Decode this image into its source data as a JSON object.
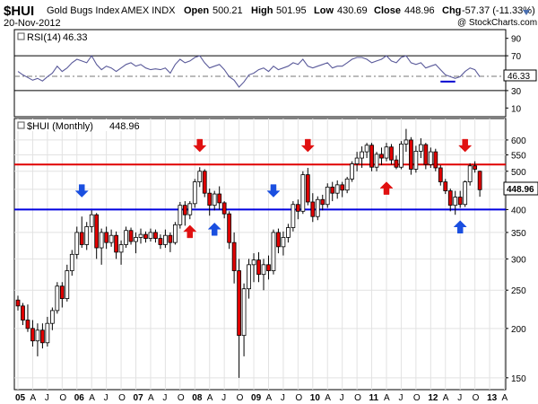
{
  "header": {
    "symbol": "$HUI",
    "name": "Gold Bugs Index",
    "exchange": "AMEX INDX",
    "date": "20-Nov-2012",
    "open_label": "Open",
    "open": "500.21",
    "high_label": "High",
    "high": "501.95",
    "low_label": "Low",
    "low": "430.69",
    "close_label": "Close",
    "close": "448.96",
    "chg_label": "Chg",
    "chg": "-57.37 (-11.33%)",
    "watermark": "@ StockCharts.com"
  },
  "chart_data": [
    {
      "type": "line",
      "title": "RSI(14) 46.33",
      "legend_label": "RSI(14)",
      "legend_value": "46.33",
      "last_value_label": "46.33",
      "ylim": [
        0,
        100
      ],
      "yticks": [
        10,
        30,
        50,
        70,
        90
      ],
      "reference_lines": [
        70,
        30
      ],
      "dashed_midline": 46.33,
      "color": "#5a5a9a",
      "x": [
        "2005-01",
        "2005-02",
        "2005-03",
        "2005-04",
        "2005-05",
        "2005-06",
        "2005-07",
        "2005-08",
        "2005-09",
        "2005-10",
        "2005-11",
        "2005-12",
        "2006-01",
        "2006-02",
        "2006-03",
        "2006-04",
        "2006-05",
        "2006-06",
        "2006-07",
        "2006-08",
        "2006-09",
        "2006-10",
        "2006-11",
        "2006-12",
        "2007-01",
        "2007-02",
        "2007-03",
        "2007-04",
        "2007-05",
        "2007-06",
        "2007-07",
        "2007-08",
        "2007-09",
        "2007-10",
        "2007-11",
        "2007-12",
        "2008-01",
        "2008-02",
        "2008-03",
        "2008-04",
        "2008-05",
        "2008-06",
        "2008-07",
        "2008-08",
        "2008-09",
        "2008-10",
        "2008-11",
        "2008-12",
        "2009-01",
        "2009-02",
        "2009-03",
        "2009-04",
        "2009-05",
        "2009-06",
        "2009-07",
        "2009-08",
        "2009-09",
        "2009-10",
        "2009-11",
        "2009-12",
        "2010-01",
        "2010-02",
        "2010-03",
        "2010-04",
        "2010-05",
        "2010-06",
        "2010-07",
        "2010-08",
        "2010-09",
        "2010-10",
        "2010-11",
        "2010-12",
        "2011-01",
        "2011-02",
        "2011-03",
        "2011-04",
        "2011-05",
        "2011-06",
        "2011-07",
        "2011-08",
        "2011-09",
        "2011-10",
        "2011-11",
        "2011-12",
        "2012-01",
        "2012-02",
        "2012-03",
        "2012-04",
        "2012-05",
        "2012-06",
        "2012-07",
        "2012-08",
        "2012-09",
        "2012-10",
        "2012-11"
      ],
      "values": [
        52,
        48,
        45,
        42,
        44,
        41,
        46,
        50,
        58,
        52,
        56,
        62,
        66,
        64,
        62,
        70,
        60,
        54,
        58,
        56,
        52,
        56,
        60,
        62,
        58,
        60,
        56,
        54,
        55,
        54,
        56,
        50,
        60,
        66,
        62,
        64,
        68,
        70,
        62,
        56,
        58,
        60,
        54,
        46,
        42,
        34,
        40,
        48,
        50,
        54,
        56,
        52,
        58,
        54,
        56,
        58,
        62,
        60,
        66,
        58,
        56,
        58,
        60,
        62,
        56,
        58,
        58,
        62,
        66,
        68,
        68,
        66,
        62,
        64,
        66,
        70,
        64,
        62,
        68,
        70,
        62,
        60,
        62,
        56,
        58,
        60,
        54,
        48,
        46,
        44,
        46,
        52,
        56,
        54,
        46
      ]
    },
    {
      "type": "candlestick",
      "title": "$HUI (Monthly) 448.96",
      "legend_label": "$HUI (Monthly)",
      "legend_value": "448.96",
      "last_value_label": "448.96",
      "yscale": "log",
      "ylim": [
        140,
        680
      ],
      "yticks": [
        150,
        200,
        250,
        300,
        350,
        400,
        450,
        500,
        550,
        600
      ],
      "xlabels": [
        "05",
        "A",
        "J",
        "O",
        "06",
        "A",
        "J",
        "O",
        "07",
        "A",
        "J",
        "O",
        "08",
        "A",
        "J",
        "O",
        "09",
        "A",
        "J",
        "O",
        "10",
        "A",
        "J",
        "O",
        "11",
        "A",
        "J",
        "O",
        "12",
        "A",
        "J",
        "O",
        "13",
        "A"
      ],
      "x_start": "2005-01",
      "horizontal_lines": [
        {
          "value": 520,
          "color": "#e00000"
        },
        {
          "value": 400,
          "color": "#0000e0"
        }
      ],
      "arrows": [
        {
          "month": "2006-02",
          "value": 430,
          "direction": "down",
          "color": "#1a4fe0"
        },
        {
          "month": "2008-02",
          "value": 560,
          "direction": "down",
          "color": "#e01010"
        },
        {
          "month": "2007-12",
          "value": 365,
          "direction": "up",
          "color": "#e01010"
        },
        {
          "month": "2008-05",
          "value": 370,
          "direction": "up",
          "color": "#1a4fe0"
        },
        {
          "month": "2009-05",
          "value": 430,
          "direction": "down",
          "color": "#1a4fe0"
        },
        {
          "month": "2009-12",
          "value": 560,
          "direction": "down",
          "color": "#e01010"
        },
        {
          "month": "2011-04",
          "value": 470,
          "direction": "up",
          "color": "#e01010"
        },
        {
          "month": "2012-08",
          "value": 560,
          "direction": "down",
          "color": "#e01010"
        },
        {
          "month": "2012-07",
          "value": 375,
          "direction": "up",
          "color": "#1a4fe0"
        }
      ],
      "candles": [
        {
          "o": 236,
          "h": 242,
          "l": 222,
          "c": 228
        },
        {
          "o": 228,
          "h": 232,
          "l": 204,
          "c": 210
        },
        {
          "o": 210,
          "h": 230,
          "l": 196,
          "c": 200
        },
        {
          "o": 200,
          "h": 210,
          "l": 180,
          "c": 186
        },
        {
          "o": 186,
          "h": 206,
          "l": 170,
          "c": 198
        },
        {
          "o": 198,
          "h": 206,
          "l": 178,
          "c": 184
        },
        {
          "o": 184,
          "h": 214,
          "l": 180,
          "c": 206
        },
        {
          "o": 206,
          "h": 226,
          "l": 198,
          "c": 222
        },
        {
          "o": 222,
          "h": 262,
          "l": 218,
          "c": 256
        },
        {
          "o": 256,
          "h": 262,
          "l": 226,
          "c": 238
        },
        {
          "o": 238,
          "h": 290,
          "l": 234,
          "c": 280
        },
        {
          "o": 280,
          "h": 316,
          "l": 272,
          "c": 308
        },
        {
          "o": 308,
          "h": 362,
          "l": 300,
          "c": 350
        },
        {
          "o": 350,
          "h": 384,
          "l": 320,
          "c": 326
        },
        {
          "o": 326,
          "h": 372,
          "l": 316,
          "c": 362
        },
        {
          "o": 362,
          "h": 398,
          "l": 350,
          "c": 388
        },
        {
          "o": 388,
          "h": 392,
          "l": 300,
          "c": 320
        },
        {
          "o": 320,
          "h": 358,
          "l": 290,
          "c": 350
        },
        {
          "o": 350,
          "h": 362,
          "l": 318,
          "c": 330
        },
        {
          "o": 330,
          "h": 356,
          "l": 322,
          "c": 344
        },
        {
          "o": 344,
          "h": 352,
          "l": 300,
          "c": 312
        },
        {
          "o": 312,
          "h": 334,
          "l": 290,
          "c": 326
        },
        {
          "o": 326,
          "h": 362,
          "l": 320,
          "c": 354
        },
        {
          "o": 354,
          "h": 360,
          "l": 326,
          "c": 332
        },
        {
          "o": 332,
          "h": 350,
          "l": 310,
          "c": 340
        },
        {
          "o": 340,
          "h": 358,
          "l": 328,
          "c": 346
        },
        {
          "o": 346,
          "h": 352,
          "l": 330,
          "c": 338
        },
        {
          "o": 338,
          "h": 358,
          "l": 332,
          "c": 350
        },
        {
          "o": 350,
          "h": 356,
          "l": 330,
          "c": 338
        },
        {
          "o": 338,
          "h": 346,
          "l": 318,
          "c": 326
        },
        {
          "o": 326,
          "h": 356,
          "l": 320,
          "c": 344
        },
        {
          "o": 344,
          "h": 350,
          "l": 312,
          "c": 330
        },
        {
          "o": 330,
          "h": 372,
          "l": 326,
          "c": 366
        },
        {
          "o": 366,
          "h": 418,
          "l": 358,
          "c": 410
        },
        {
          "o": 410,
          "h": 420,
          "l": 364,
          "c": 388
        },
        {
          "o": 388,
          "h": 420,
          "l": 378,
          "c": 414
        },
        {
          "o": 414,
          "h": 478,
          "l": 404,
          "c": 470
        },
        {
          "o": 470,
          "h": 512,
          "l": 456,
          "c": 500
        },
        {
          "o": 500,
          "h": 506,
          "l": 430,
          "c": 440
        },
        {
          "o": 440,
          "h": 452,
          "l": 386,
          "c": 410
        },
        {
          "o": 410,
          "h": 446,
          "l": 398,
          "c": 438
        },
        {
          "o": 438,
          "h": 458,
          "l": 400,
          "c": 416
        },
        {
          "o": 416,
          "h": 420,
          "l": 380,
          "c": 390
        },
        {
          "o": 390,
          "h": 396,
          "l": 318,
          "c": 330
        },
        {
          "o": 330,
          "h": 350,
          "l": 260,
          "c": 280
        },
        {
          "o": 280,
          "h": 300,
          "l": 150,
          "c": 192
        },
        {
          "o": 192,
          "h": 260,
          "l": 170,
          "c": 252
        },
        {
          "o": 252,
          "h": 300,
          "l": 238,
          "c": 290
        },
        {
          "o": 290,
          "h": 310,
          "l": 262,
          "c": 298
        },
        {
          "o": 298,
          "h": 312,
          "l": 262,
          "c": 274
        },
        {
          "o": 274,
          "h": 300,
          "l": 250,
          "c": 290
        },
        {
          "o": 290,
          "h": 306,
          "l": 266,
          "c": 280
        },
        {
          "o": 280,
          "h": 356,
          "l": 274,
          "c": 350
        },
        {
          "o": 350,
          "h": 358,
          "l": 310,
          "c": 322
        },
        {
          "o": 322,
          "h": 352,
          "l": 306,
          "c": 340
        },
        {
          "o": 340,
          "h": 368,
          "l": 330,
          "c": 360
        },
        {
          "o": 360,
          "h": 420,
          "l": 352,
          "c": 412
        },
        {
          "o": 412,
          "h": 424,
          "l": 378,
          "c": 396
        },
        {
          "o": 396,
          "h": 500,
          "l": 390,
          "c": 490
        },
        {
          "o": 490,
          "h": 510,
          "l": 410,
          "c": 418
        },
        {
          "o": 418,
          "h": 440,
          "l": 372,
          "c": 384
        },
        {
          "o": 384,
          "h": 432,
          "l": 376,
          "c": 424
        },
        {
          "o": 424,
          "h": 436,
          "l": 398,
          "c": 412
        },
        {
          "o": 412,
          "h": 466,
          "l": 404,
          "c": 456
        },
        {
          "o": 456,
          "h": 470,
          "l": 420,
          "c": 440
        },
        {
          "o": 440,
          "h": 474,
          "l": 426,
          "c": 462
        },
        {
          "o": 462,
          "h": 470,
          "l": 430,
          "c": 448
        },
        {
          "o": 448,
          "h": 484,
          "l": 440,
          "c": 478
        },
        {
          "o": 478,
          "h": 530,
          "l": 470,
          "c": 522
        },
        {
          "o": 522,
          "h": 560,
          "l": 500,
          "c": 540
        },
        {
          "o": 540,
          "h": 578,
          "l": 510,
          "c": 560
        },
        {
          "o": 560,
          "h": 590,
          "l": 540,
          "c": 582
        },
        {
          "o": 582,
          "h": 590,
          "l": 500,
          "c": 512
        },
        {
          "o": 512,
          "h": 560,
          "l": 500,
          "c": 552
        },
        {
          "o": 552,
          "h": 574,
          "l": 518,
          "c": 540
        },
        {
          "o": 540,
          "h": 590,
          "l": 530,
          "c": 576
        },
        {
          "o": 576,
          "h": 586,
          "l": 520,
          "c": 534
        },
        {
          "o": 534,
          "h": 548,
          "l": 506,
          "c": 512
        },
        {
          "o": 512,
          "h": 596,
          "l": 506,
          "c": 586
        },
        {
          "o": 586,
          "h": 640,
          "l": 560,
          "c": 600
        },
        {
          "o": 600,
          "h": 610,
          "l": 490,
          "c": 506
        },
        {
          "o": 506,
          "h": 580,
          "l": 496,
          "c": 562
        },
        {
          "o": 562,
          "h": 606,
          "l": 540,
          "c": 584
        },
        {
          "o": 584,
          "h": 590,
          "l": 506,
          "c": 520
        },
        {
          "o": 520,
          "h": 574,
          "l": 510,
          "c": 560
        },
        {
          "o": 560,
          "h": 570,
          "l": 500,
          "c": 510
        },
        {
          "o": 510,
          "h": 518,
          "l": 460,
          "c": 470
        },
        {
          "o": 470,
          "h": 478,
          "l": 438,
          "c": 446
        },
        {
          "o": 446,
          "h": 452,
          "l": 396,
          "c": 410
        },
        {
          "o": 410,
          "h": 446,
          "l": 388,
          "c": 430
        },
        {
          "o": 430,
          "h": 446,
          "l": 404,
          "c": 412
        },
        {
          "o": 412,
          "h": 474,
          "l": 406,
          "c": 470
        },
        {
          "o": 470,
          "h": 524,
          "l": 460,
          "c": 516
        },
        {
          "o": 516,
          "h": 530,
          "l": 496,
          "c": 506
        },
        {
          "o": 500,
          "h": 502,
          "l": 431,
          "c": 449
        }
      ]
    }
  ]
}
